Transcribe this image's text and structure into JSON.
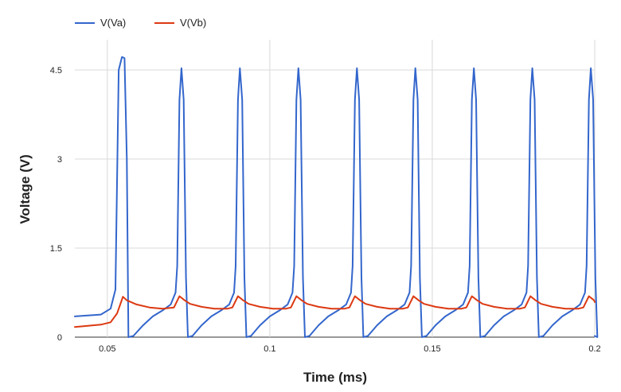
{
  "chart_data": {
    "type": "line",
    "xlabel": "Time (ms)",
    "ylabel": "Voltage (V)",
    "xlim": [
      0.04,
      0.2
    ],
    "ylim": [
      0,
      4.5
    ],
    "x_ticks": [
      0.05,
      0.1,
      0.15,
      0.2
    ],
    "x_tick_labels": [
      "0.05",
      "0.1",
      "0.15",
      "0.2"
    ],
    "y_ticks": [
      0,
      1.5,
      3,
      4.5
    ],
    "y_tick_labels": [
      "0",
      "1.5",
      "3",
      "4.5"
    ],
    "grid": true,
    "legend_position": "top-left",
    "series": [
      {
        "name": "V(Va)",
        "color": "#3366cc",
        "x": [
          0.04,
          0.048,
          0.051,
          0.0525,
          0.0535,
          0.0545,
          0.0553,
          0.056,
          0.0565,
          0.058,
          0.061,
          0.064,
          0.067,
          0.0695,
          0.071,
          0.0715,
          0.0722,
          0.0728,
          0.0735,
          0.0742,
          0.0748,
          0.0762,
          0.079,
          0.082,
          0.085,
          0.0875,
          0.089,
          0.0895,
          0.0902,
          0.0908,
          0.0915,
          0.0922,
          0.0928,
          0.0942,
          0.097,
          0.1,
          0.103,
          0.1055,
          0.107,
          0.1075,
          0.1082,
          0.1088,
          0.1095,
          0.1102,
          0.1108,
          0.1122,
          0.115,
          0.118,
          0.121,
          0.1235,
          0.125,
          0.1255,
          0.1262,
          0.1268,
          0.1275,
          0.1282,
          0.1288,
          0.1302,
          0.133,
          0.136,
          0.139,
          0.1415,
          0.143,
          0.1435,
          0.1442,
          0.1448,
          0.1455,
          0.1462,
          0.1468,
          0.1482,
          0.151,
          0.154,
          0.157,
          0.1595,
          0.161,
          0.1615,
          0.1622,
          0.1628,
          0.1635,
          0.1642,
          0.1648,
          0.1662,
          0.169,
          0.172,
          0.175,
          0.1775,
          0.179,
          0.1795,
          0.1802,
          0.1808,
          0.1815,
          0.1822,
          0.1828,
          0.1842,
          0.187,
          0.19,
          0.193,
          0.1955,
          0.197,
          0.1975,
          0.1982,
          0.1988,
          0.1995,
          0.2002,
          0.2008,
          0.2
        ],
        "values": [
          0.35,
          0.38,
          0.48,
          0.8,
          4.5,
          4.72,
          4.7,
          3.0,
          0.0,
          0.02,
          0.2,
          0.35,
          0.45,
          0.55,
          0.75,
          1.2,
          4.0,
          4.53,
          4.0,
          1.0,
          0.0,
          0.02,
          0.2,
          0.35,
          0.45,
          0.55,
          0.75,
          1.2,
          4.0,
          4.53,
          4.0,
          1.0,
          0.0,
          0.02,
          0.2,
          0.35,
          0.45,
          0.55,
          0.75,
          1.2,
          4.0,
          4.53,
          4.0,
          1.0,
          0.0,
          0.02,
          0.2,
          0.35,
          0.45,
          0.55,
          0.75,
          1.2,
          4.0,
          4.53,
          4.0,
          1.0,
          0.0,
          0.02,
          0.2,
          0.35,
          0.45,
          0.55,
          0.75,
          1.2,
          4.0,
          4.53,
          4.0,
          1.0,
          0.0,
          0.02,
          0.2,
          0.35,
          0.45,
          0.55,
          0.75,
          1.2,
          4.0,
          4.53,
          4.0,
          1.0,
          0.0,
          0.02,
          0.2,
          0.35,
          0.45,
          0.55,
          0.75,
          1.2,
          4.0,
          4.53,
          4.0,
          1.0,
          0.0,
          0.02,
          0.2,
          0.35,
          0.45,
          0.55,
          0.75,
          1.2,
          4.0,
          4.53,
          4.0,
          1.0,
          0.0,
          0.02
        ]
      },
      {
        "name": "V(Vb)",
        "color": "#dc3912",
        "x": [
          0.04,
          0.048,
          0.051,
          0.053,
          0.0548,
          0.056,
          0.059,
          0.063,
          0.067,
          0.0705,
          0.0722,
          0.0738,
          0.0755,
          0.079,
          0.083,
          0.087,
          0.0885,
          0.0902,
          0.0918,
          0.0935,
          0.097,
          0.101,
          0.105,
          0.1065,
          0.1082,
          0.1098,
          0.1115,
          0.115,
          0.119,
          0.123,
          0.1245,
          0.1262,
          0.1278,
          0.1295,
          0.133,
          0.137,
          0.141,
          0.1425,
          0.1442,
          0.1458,
          0.1475,
          0.151,
          0.155,
          0.159,
          0.1605,
          0.1622,
          0.1638,
          0.1655,
          0.169,
          0.173,
          0.177,
          0.1785,
          0.1802,
          0.1818,
          0.1835,
          0.187,
          0.191,
          0.195,
          0.1965,
          0.1982,
          0.1998,
          0.2
        ],
        "values": [
          0.17,
          0.21,
          0.25,
          0.4,
          0.68,
          0.62,
          0.55,
          0.5,
          0.48,
          0.5,
          0.69,
          0.62,
          0.56,
          0.51,
          0.48,
          0.48,
          0.5,
          0.69,
          0.62,
          0.56,
          0.51,
          0.48,
          0.48,
          0.5,
          0.69,
          0.62,
          0.56,
          0.51,
          0.48,
          0.48,
          0.5,
          0.69,
          0.62,
          0.56,
          0.51,
          0.48,
          0.48,
          0.5,
          0.69,
          0.62,
          0.56,
          0.51,
          0.48,
          0.48,
          0.5,
          0.69,
          0.62,
          0.56,
          0.51,
          0.48,
          0.48,
          0.5,
          0.69,
          0.62,
          0.56,
          0.51,
          0.48,
          0.48,
          0.5,
          0.69,
          0.62,
          0.59
        ]
      }
    ]
  }
}
